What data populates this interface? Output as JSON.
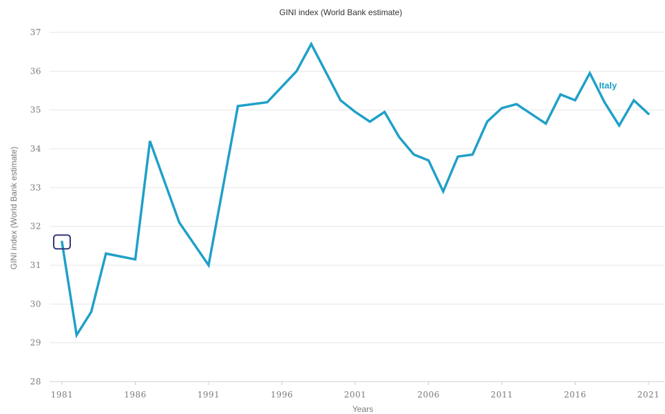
{
  "chart_data": {
    "type": "line",
    "title": "GINI index (World Bank estimate)",
    "xlabel": "Years",
    "ylabel": "GINI index (World Bank estimate)",
    "ylim": [
      28,
      37
    ],
    "xlim": [
      1981,
      2021
    ],
    "yticks": [
      28,
      29,
      30,
      31,
      32,
      33,
      34,
      35,
      36,
      37
    ],
    "xticks": [
      1981,
      1986,
      1991,
      1996,
      2001,
      2006,
      2011,
      2016,
      2021
    ],
    "grid": true,
    "color": "#1fa0c8",
    "marker_color": "#33367a",
    "highlighted_point": 1981,
    "series": [
      {
        "name": "Italy",
        "x": [
          1981,
          1982,
          1983,
          1984,
          1986,
          1987,
          1989,
          1991,
          1993,
          1995,
          1997,
          1998,
          2000,
          2001,
          2002,
          2003,
          2004,
          2005,
          2006,
          2007,
          2008,
          2009,
          2010,
          2011,
          2012,
          2014,
          2015,
          2016,
          2017,
          2018,
          2019,
          2020,
          2021
        ],
        "y": [
          31.6,
          29.2,
          29.8,
          31.3,
          31.15,
          34.2,
          32.1,
          31.0,
          35.1,
          35.2,
          36.0,
          36.7,
          35.25,
          34.95,
          34.7,
          34.95,
          34.3,
          33.85,
          33.7,
          32.9,
          33.8,
          33.85,
          34.7,
          35.05,
          35.15,
          34.65,
          35.4,
          35.25,
          35.95,
          35.2,
          34.6,
          35.25,
          34.9
        ]
      }
    ]
  }
}
